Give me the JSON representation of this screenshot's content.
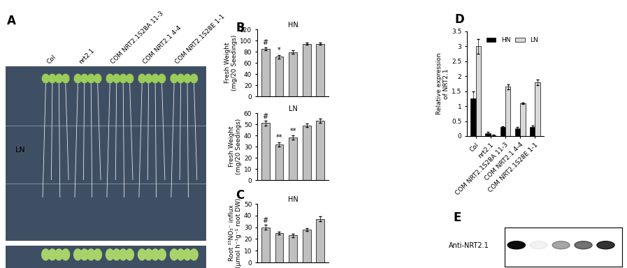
{
  "panel_a": {
    "label": "A",
    "row_label": "LN",
    "samples": [
      "Col",
      "nrt2.1",
      "COM NRT2.1S28A 11-3",
      "COM NRT2.1 4-4",
      "COM NRT2.1S28E 1-1"
    ]
  },
  "chart_data": [
    {
      "panel": "B",
      "type": "bar",
      "title": "HN",
      "y_label": "Fresh Weight\n(mg/20 Seedings)",
      "values": [
        85,
        71,
        79,
        94,
        94
      ],
      "errors": [
        3,
        3,
        3,
        2,
        2
      ],
      "annotations": [
        "#",
        "*",
        null,
        null,
        null
      ],
      "color": "#bfbfbf",
      "ylim": [
        0,
        120
      ],
      "yticks": [
        0,
        20,
        40,
        60,
        80,
        100,
        120
      ],
      "tick_labels": "y"
    },
    {
      "panel": null,
      "type": "bar",
      "title": "LN",
      "y_label": "Fresh Weight\n(mg/20 Seedings)",
      "values": [
        51,
        32,
        38,
        49,
        53
      ],
      "errors": [
        2,
        2,
        2,
        1.5,
        2
      ],
      "annotations": [
        "#",
        "**",
        "**",
        null,
        null
      ],
      "color": "#bfbfbf",
      "ylim": [
        0,
        60
      ],
      "yticks": [
        0,
        10,
        20,
        30,
        40,
        50,
        60
      ],
      "tick_labels": "y"
    },
    {
      "panel": "C",
      "type": "bar",
      "title": "HN",
      "y_label": "Root ¹⁵NO₃⁻ influx\n(μmol h⁻¹g⁻¹ root DW)",
      "values": [
        30,
        25,
        23,
        28,
        37
      ],
      "errors": [
        2,
        1,
        1.5,
        1,
        2
      ],
      "annotations": [
        "#",
        null,
        null,
        null,
        null
      ],
      "color": "#bfbfbf",
      "ylim": [
        0,
        50
      ],
      "yticks": [
        0,
        10,
        20,
        30,
        40,
        50
      ],
      "tick_labels": "y"
    },
    {
      "panel": "D",
      "type": "bar",
      "title": null,
      "y_label": "Relative expression\nof NRT2.1",
      "categories": [
        "Col",
        "nrt2.1",
        "COM NRT2.1S28A 11-3",
        "COM NRT2.1 4-4",
        "COM NRT2.1S28E 1-1"
      ],
      "series": [
        {
          "name": "HN",
          "color": "#000000",
          "values": [
            1.25,
            0.1,
            0.3,
            0.25,
            0.3
          ],
          "errors": [
            0.25,
            0.03,
            0.03,
            0.05,
            0.04
          ]
        },
        {
          "name": "LN",
          "color": "#d9d9d9",
          "values": [
            3.0,
            0.03,
            1.65,
            1.1,
            1.8
          ],
          "errors": [
            0.25,
            0.01,
            0.08,
            0.02,
            0.1
          ]
        }
      ],
      "ylim": [
        0,
        3.5
      ],
      "yticks": [
        0,
        0.5,
        1,
        1.5,
        2,
        2.5,
        3,
        3.5
      ],
      "legend": "upper right"
    }
  ],
  "panel_e": {
    "label": "E",
    "band_label": "Anti-NRT2.1"
  }
}
